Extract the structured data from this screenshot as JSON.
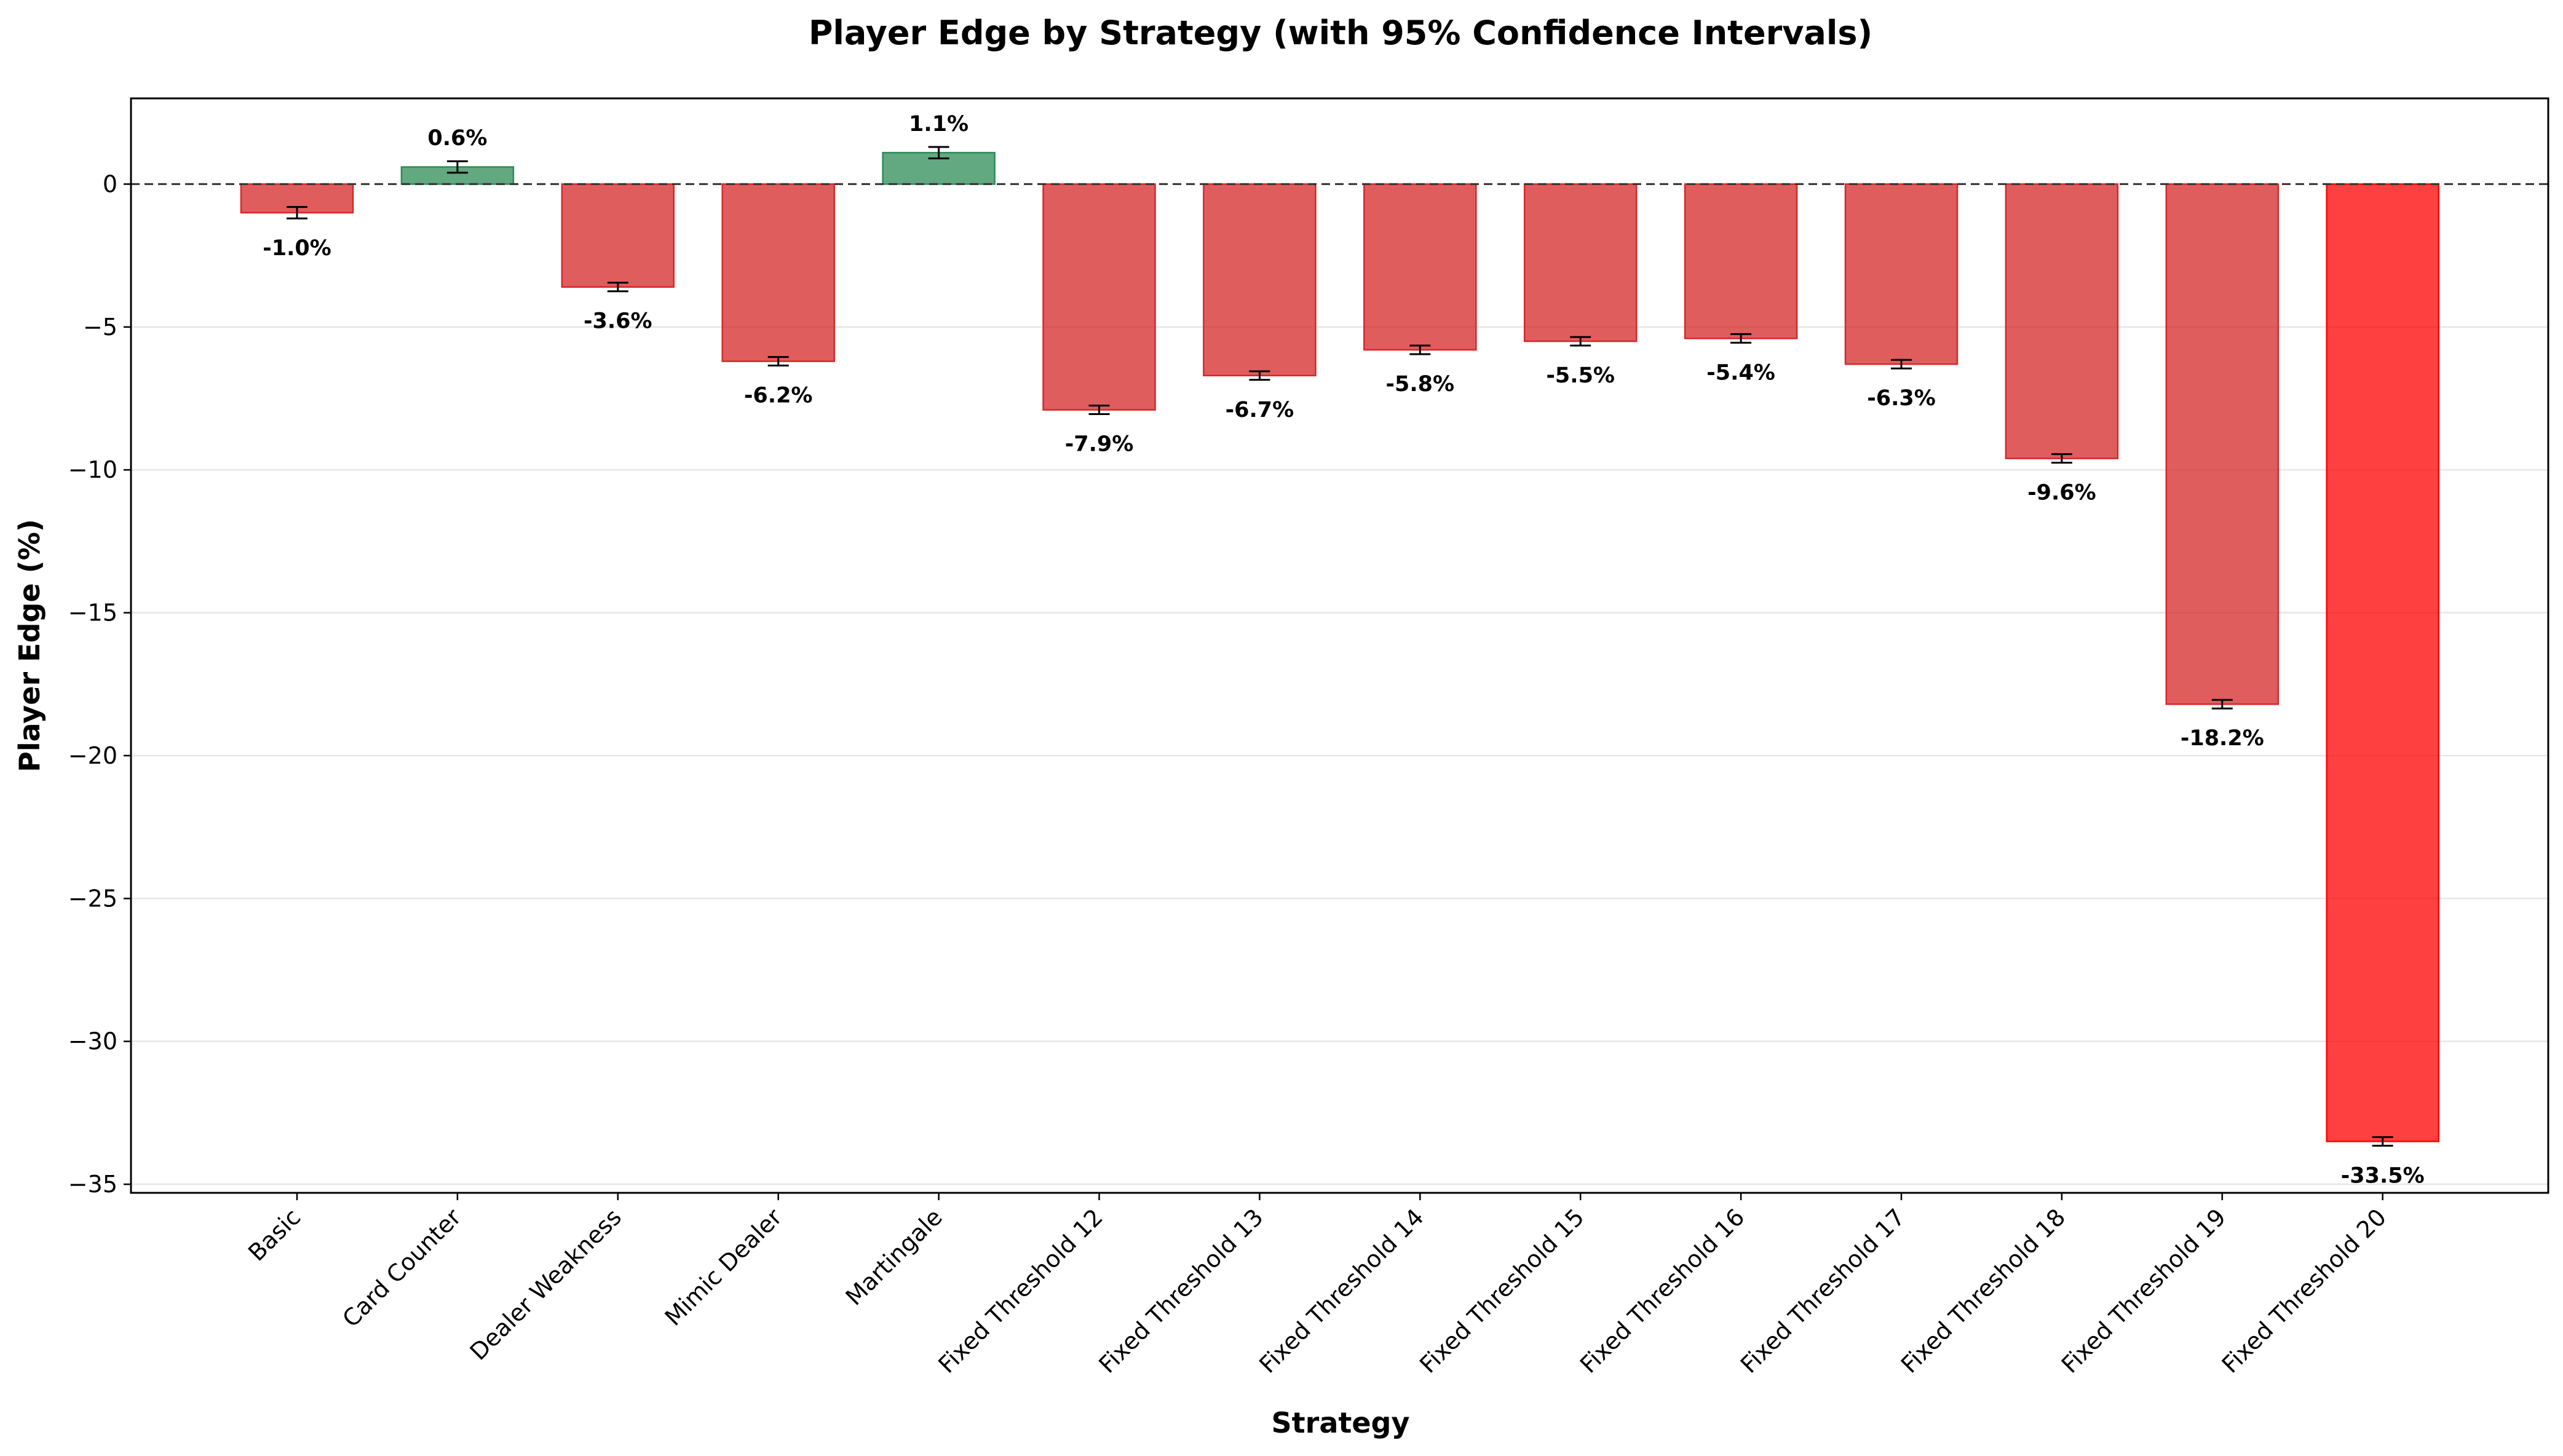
{
  "chart_data": {
    "type": "bar",
    "title": "Player Edge by Strategy (with 95% Confidence Intervals)",
    "xlabel": "Strategy",
    "ylabel": "Player Edge (%)",
    "ylim": [
      -35.3,
      3.0
    ],
    "yticks": [
      0,
      -5,
      -10,
      -15,
      -20,
      -25,
      -30,
      -35
    ],
    "ytick_labels": [
      "0",
      "−5",
      "−10",
      "−15",
      "−20",
      "−25",
      "−30",
      "−35"
    ],
    "grid": "y",
    "reference_line": 0,
    "categories": [
      "Basic",
      "Card Counter",
      "Dealer Weakness",
      "Mimic Dealer",
      "Martingale",
      "Fixed Threshold 12",
      "Fixed Threshold 13",
      "Fixed Threshold 14",
      "Fixed Threshold 15",
      "Fixed Threshold 16",
      "Fixed Threshold 17",
      "Fixed Threshold 18",
      "Fixed Threshold 19",
      "Fixed Threshold 20"
    ],
    "values": [
      -1.0,
      0.6,
      -3.6,
      -6.2,
      1.1,
      -7.9,
      -6.7,
      -5.8,
      -5.5,
      -5.4,
      -6.3,
      -9.6,
      -18.2,
      -33.5
    ],
    "ci_half_width": [
      0.2,
      0.2,
      0.15,
      0.15,
      0.2,
      0.15,
      0.15,
      0.15,
      0.15,
      0.15,
      0.15,
      0.15,
      0.15,
      0.15
    ],
    "data_labels": [
      "-1.0%",
      "0.6%",
      "-3.6%",
      "-6.2%",
      "1.1%",
      "-7.9%",
      "-6.7%",
      "-5.8%",
      "-5.5%",
      "-5.4%",
      "-6.3%",
      "-9.6%",
      "-18.2%",
      "-33.5%"
    ],
    "bar_colors": [
      "#d62728",
      "#2e8b57",
      "#d62728",
      "#d62728",
      "#2e8b57",
      "#d62728",
      "#d62728",
      "#d62728",
      "#d62728",
      "#d62728",
      "#d62728",
      "#d62728",
      "#d62728",
      "#ff0000"
    ],
    "bar_opacity": 0.75,
    "errorbar_color": "#000000",
    "grid_color": "#e6e6e6"
  }
}
